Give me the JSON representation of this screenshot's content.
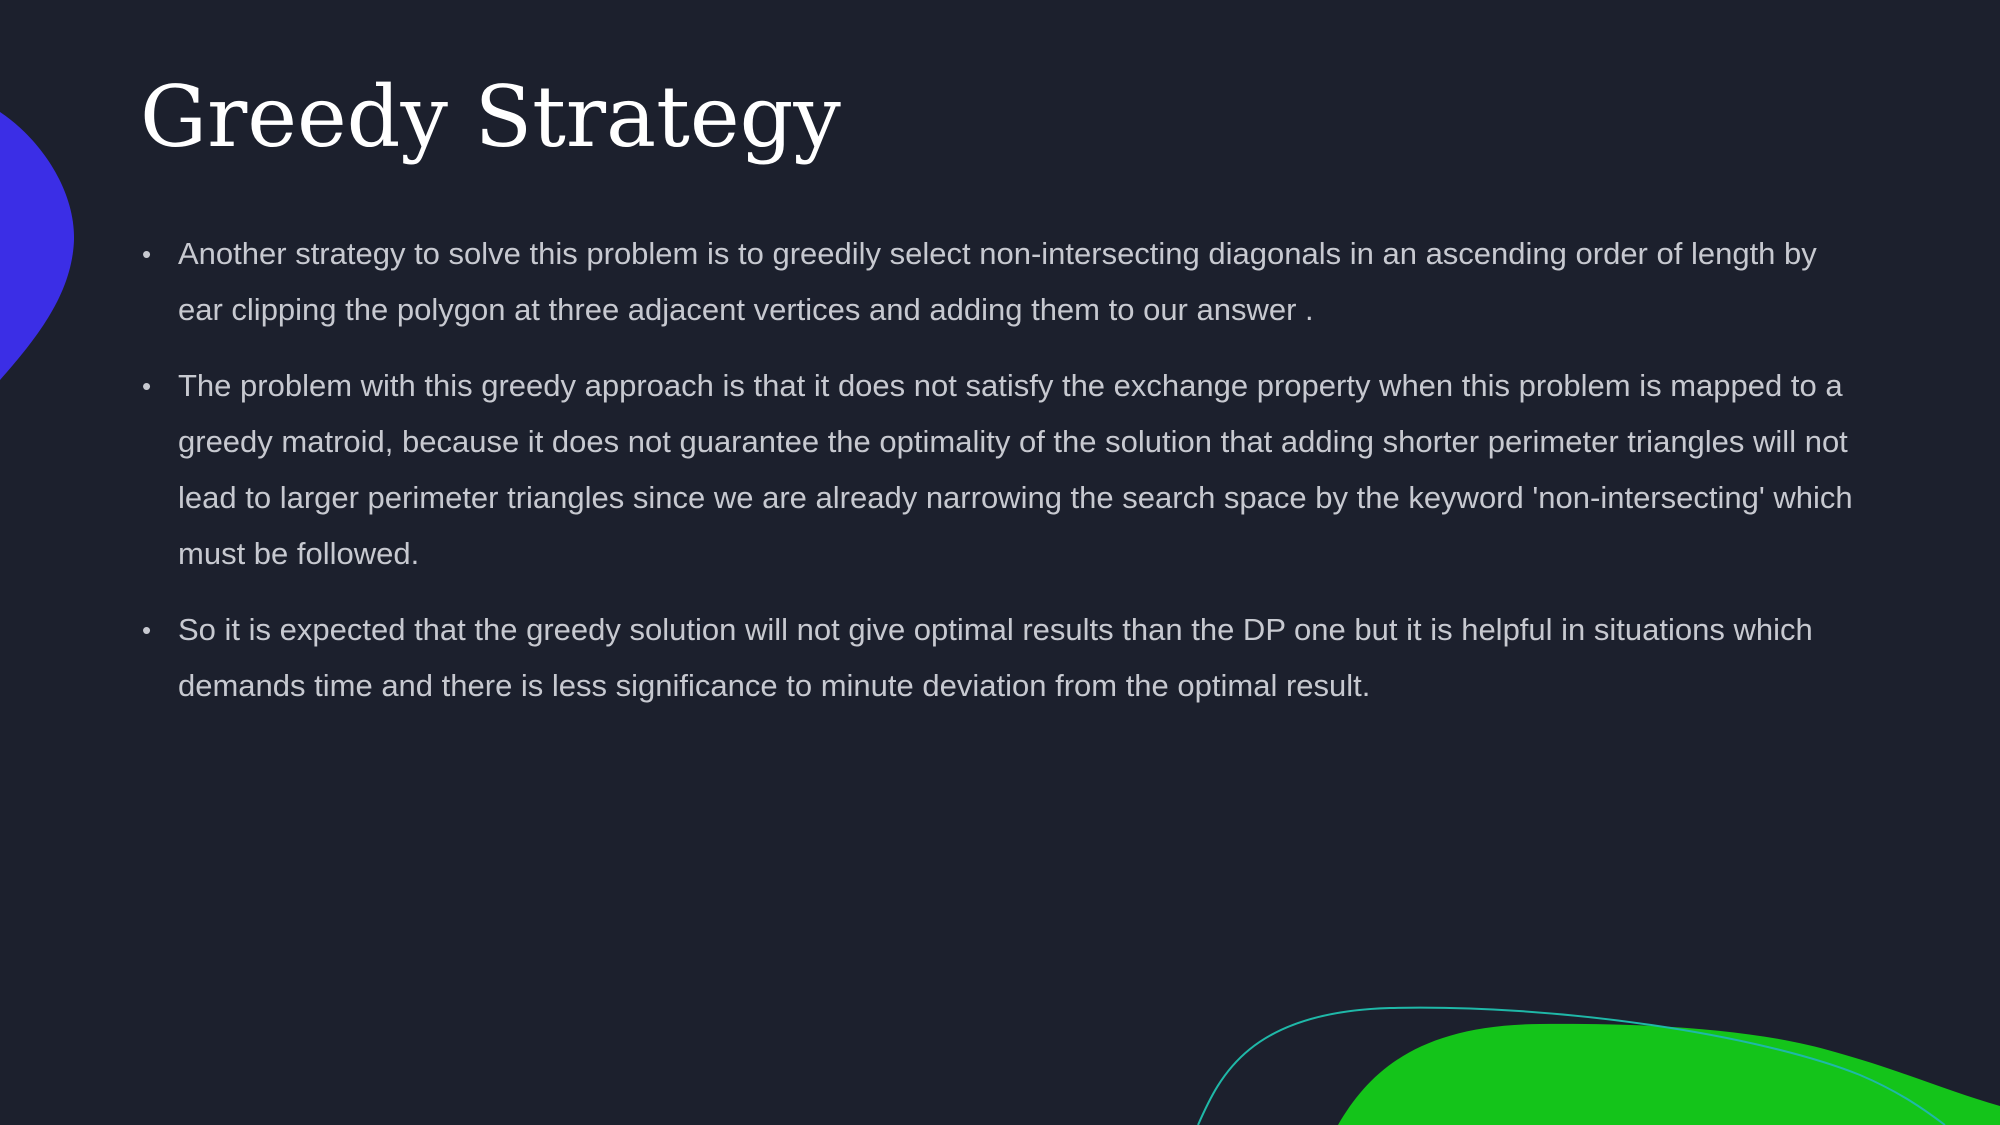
{
  "slide": {
    "title": "Greedy Strategy",
    "bullets": [
      "Another strategy to solve this problem is to greedily select non-intersecting diagonals in an ascending order of length by ear clipping the polygon at three adjacent vertices and adding them to our answer .",
      "The problem with this greedy approach is that it does not satisfy the exchange property when this problem is mapped to a greedy matroid, because it does not guarantee the optimality of the solution that adding shorter perimeter triangles will not lead to larger perimeter triangles since we are already narrowing the search space by the keyword 'non-intersecting' which must be followed.",
      "So it is expected that the greedy solution will not give optimal results than the DP one but it is helpful in situations which demands time and there is less significance to minute deviation from the optimal result."
    ],
    "bullet_symbol": "•"
  },
  "colors": {
    "background": "#1c202d",
    "title": "#ffffff",
    "body_text": "#c7c9d0",
    "blue_shape": "#3b2ee6",
    "green_shape": "#14c41a",
    "teal_line": "#1fb8a8"
  }
}
